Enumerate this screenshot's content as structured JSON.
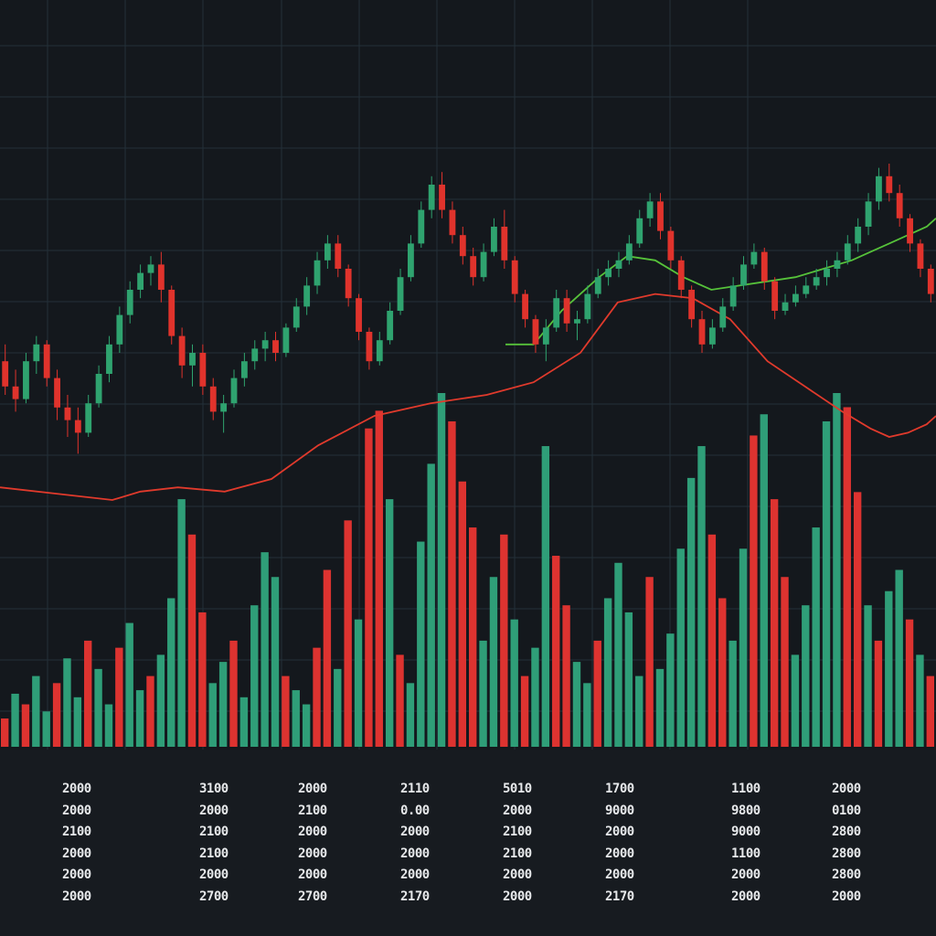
{
  "colors": {
    "background": "#14181d",
    "grid": "#233039",
    "up": "#2fa36f",
    "down": "#e0332c",
    "volume_up": "#2f9e78",
    "volume_down": "#dd3330",
    "ma_green": "#56c23a",
    "ma_red": "#e03a2c",
    "table_text": "#e6e8ea"
  },
  "chart_data": {
    "type": "candlestick",
    "title": "",
    "xlabel": "",
    "ylabel": "",
    "grid": true,
    "legend": "none",
    "price_ylim": [
      0,
      100
    ],
    "volume_ylim": [
      0,
      100
    ],
    "candles": [
      {
        "o": 38,
        "h": 42,
        "l": 30,
        "c": 32
      },
      {
        "o": 32,
        "h": 36,
        "l": 26,
        "c": 29
      },
      {
        "o": 29,
        "h": 40,
        "l": 28,
        "c": 38
      },
      {
        "o": 38,
        "h": 44,
        "l": 35,
        "c": 42
      },
      {
        "o": 42,
        "h": 43,
        "l": 32,
        "c": 34
      },
      {
        "o": 34,
        "h": 36,
        "l": 24,
        "c": 27
      },
      {
        "o": 27,
        "h": 30,
        "l": 20,
        "c": 24
      },
      {
        "o": 24,
        "h": 27,
        "l": 16,
        "c": 21
      },
      {
        "o": 21,
        "h": 30,
        "l": 20,
        "c": 28
      },
      {
        "o": 28,
        "h": 37,
        "l": 27,
        "c": 35
      },
      {
        "o": 35,
        "h": 44,
        "l": 33,
        "c": 42
      },
      {
        "o": 42,
        "h": 51,
        "l": 40,
        "c": 49
      },
      {
        "o": 49,
        "h": 57,
        "l": 47,
        "c": 55
      },
      {
        "o": 55,
        "h": 61,
        "l": 53,
        "c": 59
      },
      {
        "o": 59,
        "h": 63,
        "l": 56,
        "c": 61
      },
      {
        "o": 61,
        "h": 64,
        "l": 52,
        "c": 55
      },
      {
        "o": 55,
        "h": 56,
        "l": 42,
        "c": 44
      },
      {
        "o": 44,
        "h": 46,
        "l": 34,
        "c": 37
      },
      {
        "o": 37,
        "h": 42,
        "l": 32,
        "c": 40
      },
      {
        "o": 40,
        "h": 42,
        "l": 30,
        "c": 32
      },
      {
        "o": 32,
        "h": 34,
        "l": 24,
        "c": 26
      },
      {
        "o": 26,
        "h": 30,
        "l": 21,
        "c": 28
      },
      {
        "o": 28,
        "h": 36,
        "l": 27,
        "c": 34
      },
      {
        "o": 34,
        "h": 40,
        "l": 32,
        "c": 38
      },
      {
        "o": 38,
        "h": 43,
        "l": 36,
        "c": 41
      },
      {
        "o": 41,
        "h": 45,
        "l": 38,
        "c": 43
      },
      {
        "o": 43,
        "h": 45,
        "l": 38,
        "c": 40
      },
      {
        "o": 40,
        "h": 47,
        "l": 39,
        "c": 46
      },
      {
        "o": 46,
        "h": 53,
        "l": 45,
        "c": 51
      },
      {
        "o": 51,
        "h": 58,
        "l": 49,
        "c": 56
      },
      {
        "o": 56,
        "h": 64,
        "l": 54,
        "c": 62
      },
      {
        "o": 62,
        "h": 68,
        "l": 60,
        "c": 66
      },
      {
        "o": 66,
        "h": 68,
        "l": 58,
        "c": 60
      },
      {
        "o": 60,
        "h": 61,
        "l": 51,
        "c": 53
      },
      {
        "o": 53,
        "h": 54,
        "l": 43,
        "c": 45
      },
      {
        "o": 45,
        "h": 46,
        "l": 36,
        "c": 38
      },
      {
        "o": 38,
        "h": 45,
        "l": 37,
        "c": 43
      },
      {
        "o": 43,
        "h": 52,
        "l": 42,
        "c": 50
      },
      {
        "o": 50,
        "h": 60,
        "l": 49,
        "c": 58
      },
      {
        "o": 58,
        "h": 68,
        "l": 57,
        "c": 66
      },
      {
        "o": 66,
        "h": 76,
        "l": 65,
        "c": 74
      },
      {
        "o": 74,
        "h": 82,
        "l": 72,
        "c": 80
      },
      {
        "o": 80,
        "h": 83,
        "l": 72,
        "c": 74
      },
      {
        "o": 74,
        "h": 76,
        "l": 66,
        "c": 68
      },
      {
        "o": 68,
        "h": 70,
        "l": 61,
        "c": 63
      },
      {
        "o": 63,
        "h": 65,
        "l": 56,
        "c": 58
      },
      {
        "o": 58,
        "h": 66,
        "l": 57,
        "c": 64
      },
      {
        "o": 64,
        "h": 72,
        "l": 63,
        "c": 70
      },
      {
        "o": 70,
        "h": 74,
        "l": 60,
        "c": 62
      },
      {
        "o": 62,
        "h": 63,
        "l": 52,
        "c": 54
      },
      {
        "o": 54,
        "h": 55,
        "l": 46,
        "c": 48
      },
      {
        "o": 48,
        "h": 49,
        "l": 40,
        "c": 42
      },
      {
        "o": 42,
        "h": 48,
        "l": 38,
        "c": 46
      },
      {
        "o": 46,
        "h": 55,
        "l": 45,
        "c": 53
      },
      {
        "o": 53,
        "h": 55,
        "l": 45,
        "c": 47
      },
      {
        "o": 47,
        "h": 50,
        "l": 43,
        "c": 48
      },
      {
        "o": 48,
        "h": 56,
        "l": 47,
        "c": 54
      },
      {
        "o": 54,
        "h": 60,
        "l": 53,
        "c": 58
      },
      {
        "o": 58,
        "h": 62,
        "l": 56,
        "c": 60
      },
      {
        "o": 60,
        "h": 64,
        "l": 58,
        "c": 62
      },
      {
        "o": 62,
        "h": 68,
        "l": 61,
        "c": 66
      },
      {
        "o": 66,
        "h": 74,
        "l": 65,
        "c": 72
      },
      {
        "o": 72,
        "h": 78,
        "l": 70,
        "c": 76
      },
      {
        "o": 76,
        "h": 78,
        "l": 67,
        "c": 69
      },
      {
        "o": 69,
        "h": 70,
        "l": 60,
        "c": 62
      },
      {
        "o": 62,
        "h": 63,
        "l": 53,
        "c": 55
      },
      {
        "o": 55,
        "h": 56,
        "l": 46,
        "c": 48
      },
      {
        "o": 48,
        "h": 50,
        "l": 40,
        "c": 42
      },
      {
        "o": 42,
        "h": 48,
        "l": 41,
        "c": 46
      },
      {
        "o": 46,
        "h": 53,
        "l": 45,
        "c": 51
      },
      {
        "o": 51,
        "h": 58,
        "l": 50,
        "c": 56
      },
      {
        "o": 56,
        "h": 63,
        "l": 55,
        "c": 61
      },
      {
        "o": 61,
        "h": 66,
        "l": 60,
        "c": 64
      },
      {
        "o": 64,
        "h": 65,
        "l": 55,
        "c": 57
      },
      {
        "o": 57,
        "h": 58,
        "l": 48,
        "c": 50
      },
      {
        "o": 50,
        "h": 54,
        "l": 49,
        "c": 52
      },
      {
        "o": 52,
        "h": 56,
        "l": 51,
        "c": 54
      },
      {
        "o": 54,
        "h": 58,
        "l": 53,
        "c": 56
      },
      {
        "o": 56,
        "h": 60,
        "l": 55,
        "c": 58
      },
      {
        "o": 58,
        "h": 62,
        "l": 56,
        "c": 60
      },
      {
        "o": 60,
        "h": 64,
        "l": 58,
        "c": 62
      },
      {
        "o": 62,
        "h": 68,
        "l": 61,
        "c": 66
      },
      {
        "o": 66,
        "h": 72,
        "l": 64,
        "c": 70
      },
      {
        "o": 70,
        "h": 78,
        "l": 68,
        "c": 76
      },
      {
        "o": 76,
        "h": 84,
        "l": 74,
        "c": 82
      },
      {
        "o": 82,
        "h": 85,
        "l": 76,
        "c": 78
      },
      {
        "o": 78,
        "h": 80,
        "l": 70,
        "c": 72
      },
      {
        "o": 72,
        "h": 73,
        "l": 64,
        "c": 66
      },
      {
        "o": 66,
        "h": 67,
        "l": 58,
        "c": 60
      },
      {
        "o": 60,
        "h": 61,
        "l": 52,
        "c": 54
      }
    ],
    "volume": [
      {
        "v": 8,
        "up": false
      },
      {
        "v": 15,
        "up": true
      },
      {
        "v": 12,
        "up": false
      },
      {
        "v": 20,
        "up": true
      },
      {
        "v": 10,
        "up": true
      },
      {
        "v": 18,
        "up": false
      },
      {
        "v": 25,
        "up": true
      },
      {
        "v": 14,
        "up": true
      },
      {
        "v": 30,
        "up": false
      },
      {
        "v": 22,
        "up": true
      },
      {
        "v": 12,
        "up": true
      },
      {
        "v": 28,
        "up": false
      },
      {
        "v": 35,
        "up": true
      },
      {
        "v": 16,
        "up": true
      },
      {
        "v": 20,
        "up": false
      },
      {
        "v": 26,
        "up": true
      },
      {
        "v": 42,
        "up": true
      },
      {
        "v": 70,
        "up": true
      },
      {
        "v": 60,
        "up": false
      },
      {
        "v": 38,
        "up": false
      },
      {
        "v": 18,
        "up": true
      },
      {
        "v": 24,
        "up": true
      },
      {
        "v": 30,
        "up": false
      },
      {
        "v": 14,
        "up": true
      },
      {
        "v": 40,
        "up": true
      },
      {
        "v": 55,
        "up": true
      },
      {
        "v": 48,
        "up": true
      },
      {
        "v": 20,
        "up": false
      },
      {
        "v": 16,
        "up": true
      },
      {
        "v": 12,
        "up": true
      },
      {
        "v": 28,
        "up": false
      },
      {
        "v": 50,
        "up": false
      },
      {
        "v": 22,
        "up": true
      },
      {
        "v": 64,
        "up": false
      },
      {
        "v": 36,
        "up": true
      },
      {
        "v": 90,
        "up": false
      },
      {
        "v": 95,
        "up": false
      },
      {
        "v": 70,
        "up": true
      },
      {
        "v": 26,
        "up": false
      },
      {
        "v": 18,
        "up": true
      },
      {
        "v": 58,
        "up": true
      },
      {
        "v": 80,
        "up": true
      },
      {
        "v": 100,
        "up": true
      },
      {
        "v": 92,
        "up": false
      },
      {
        "v": 75,
        "up": false
      },
      {
        "v": 62,
        "up": false
      },
      {
        "v": 30,
        "up": true
      },
      {
        "v": 48,
        "up": true
      },
      {
        "v": 60,
        "up": false
      },
      {
        "v": 36,
        "up": true
      },
      {
        "v": 20,
        "up": false
      },
      {
        "v": 28,
        "up": true
      },
      {
        "v": 85,
        "up": true
      },
      {
        "v": 54,
        "up": false
      },
      {
        "v": 40,
        "up": false
      },
      {
        "v": 24,
        "up": true
      },
      {
        "v": 18,
        "up": true
      },
      {
        "v": 30,
        "up": false
      },
      {
        "v": 42,
        "up": true
      },
      {
        "v": 52,
        "up": true
      },
      {
        "v": 38,
        "up": true
      },
      {
        "v": 20,
        "up": true
      },
      {
        "v": 48,
        "up": false
      },
      {
        "v": 22,
        "up": true
      },
      {
        "v": 32,
        "up": true
      },
      {
        "v": 56,
        "up": true
      },
      {
        "v": 76,
        "up": true
      },
      {
        "v": 85,
        "up": true
      },
      {
        "v": 60,
        "up": false
      },
      {
        "v": 42,
        "up": false
      },
      {
        "v": 30,
        "up": true
      },
      {
        "v": 56,
        "up": true
      },
      {
        "v": 88,
        "up": false
      },
      {
        "v": 94,
        "up": true
      },
      {
        "v": 70,
        "up": false
      },
      {
        "v": 48,
        "up": false
      },
      {
        "v": 26,
        "up": true
      },
      {
        "v": 40,
        "up": true
      },
      {
        "v": 62,
        "up": true
      },
      {
        "v": 92,
        "up": true
      },
      {
        "v": 100,
        "up": true
      },
      {
        "v": 96,
        "up": false
      },
      {
        "v": 72,
        "up": false
      },
      {
        "v": 40,
        "up": true
      },
      {
        "v": 30,
        "up": false
      },
      {
        "v": 44,
        "up": true
      },
      {
        "v": 50,
        "up": true
      },
      {
        "v": 36,
        "up": false
      },
      {
        "v": 26,
        "up": true
      },
      {
        "v": 20,
        "up": false
      }
    ],
    "moving_averages": [
      {
        "color": "green",
        "points": [
          [
            54,
            42
          ],
          [
            57,
            42
          ],
          [
            60,
            50
          ],
          [
            64,
            58
          ],
          [
            67,
            63
          ],
          [
            70,
            62
          ],
          [
            73,
            58
          ],
          [
            76,
            55
          ],
          [
            79,
            56
          ],
          [
            82,
            57
          ],
          [
            85,
            58
          ],
          [
            88,
            60
          ],
          [
            91,
            62
          ],
          [
            93,
            64
          ],
          [
            95,
            66
          ],
          [
            97,
            68
          ],
          [
            99,
            70
          ],
          [
            100,
            72
          ]
        ]
      },
      {
        "color": "red",
        "points": [
          [
            0,
            8
          ],
          [
            8,
            6
          ],
          [
            12,
            5
          ],
          [
            15,
            7
          ],
          [
            19,
            8
          ],
          [
            24,
            7
          ],
          [
            29,
            10
          ],
          [
            34,
            18
          ],
          [
            40,
            25
          ],
          [
            46,
            28
          ],
          [
            52,
            30
          ],
          [
            57,
            33
          ],
          [
            62,
            40
          ],
          [
            66,
            52
          ],
          [
            70,
            54
          ],
          [
            74,
            53
          ],
          [
            78,
            48
          ],
          [
            82,
            38
          ],
          [
            86,
            32
          ],
          [
            90,
            26
          ],
          [
            93,
            22
          ],
          [
            95,
            20
          ],
          [
            97,
            21
          ],
          [
            99,
            23
          ],
          [
            100,
            25
          ]
        ]
      }
    ]
  },
  "table": {
    "columns": [
      [
        "2000",
        "2000",
        "2100",
        "2000",
        "2000",
        "2000"
      ],
      [
        "3100",
        "2000",
        "2100",
        "2100",
        "2000",
        "2700"
      ],
      [
        "2000",
        "2100",
        "2000",
        "2000",
        "2000",
        "2700"
      ],
      [
        "2110",
        "0.00",
        "2000",
        "2000",
        "2000",
        "2170"
      ],
      [
        "5010",
        "2000",
        "2100",
        "2100",
        "2000",
        "2000"
      ],
      [
        "1700",
        "9000",
        "2000",
        "2000",
        "2000",
        "2170"
      ],
      [
        "1100",
        "9800",
        "9000",
        "1100",
        "2000",
        "2000"
      ],
      [
        "2000",
        "0100",
        "2800",
        "2800",
        "2800",
        "2000"
      ]
    ]
  }
}
